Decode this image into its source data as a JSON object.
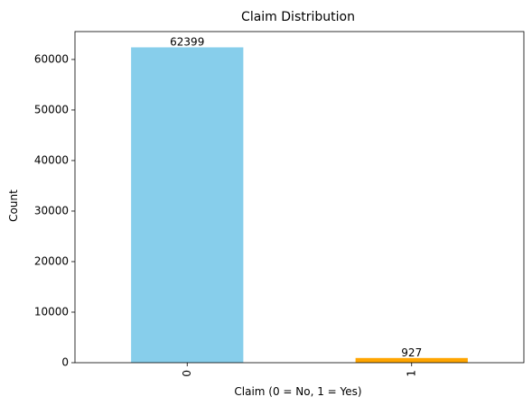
{
  "chart_data": {
    "type": "bar",
    "title": "Claim Distribution",
    "xlabel": "Claim (0 = No, 1 = Yes)",
    "ylabel": "Count",
    "categories": [
      "0",
      "1"
    ],
    "values": [
      62399,
      927
    ],
    "data_labels": [
      "62399",
      "927"
    ],
    "bar_colors": [
      "#87ceeb",
      "#ffa500"
    ],
    "ylim": [
      0,
      65520
    ],
    "yticks": [
      0,
      10000,
      20000,
      30000,
      40000,
      50000,
      60000
    ],
    "ytick_labels": [
      "0",
      "10000",
      "20000",
      "30000",
      "40000",
      "50000",
      "60000"
    ],
    "grid": false,
    "legend": "none"
  }
}
